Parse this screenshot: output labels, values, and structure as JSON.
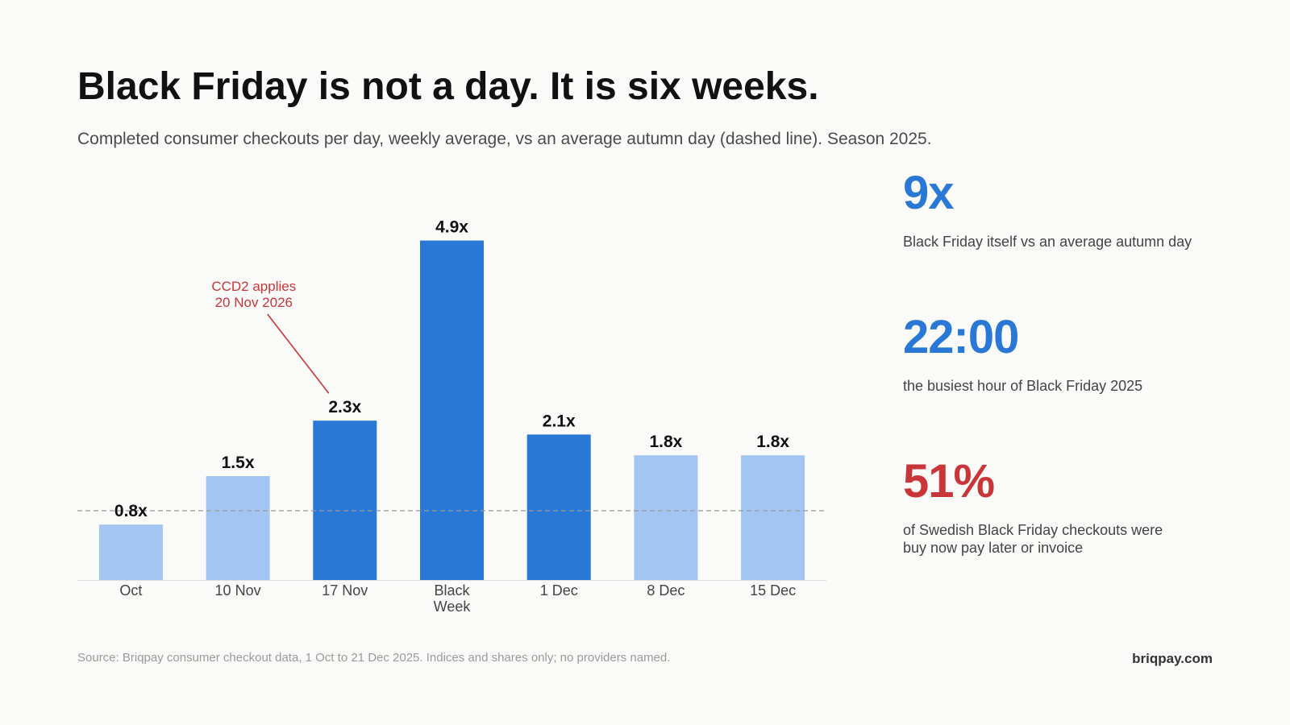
{
  "title": "Black Friday is not a day. It is six weeks.",
  "subtitle": "Completed consumer checkouts per day, weekly average, vs an average autumn day (dashed line). Season 2025.",
  "colors": {
    "light_bar": "#a2c5f2",
    "dark_bar": "#2a78d6",
    "accent_blue": "#2a78d6",
    "accent_red": "#c8363a",
    "annotation": "#c8363a",
    "baseline": "#999999"
  },
  "chart_data": {
    "type": "bar",
    "categories": [
      "Oct",
      "10 Nov",
      "17 Nov",
      "Black Week",
      "1 Dec",
      "8 Dec",
      "15 Dec"
    ],
    "values": [
      0.8,
      1.5,
      2.3,
      4.9,
      2.1,
      1.8,
      1.8
    ],
    "value_labels": [
      "0.8x",
      "1.5x",
      "2.3x",
      "4.9x",
      "2.1x",
      "1.8x",
      "1.8x"
    ],
    "highlighted": [
      false,
      false,
      true,
      true,
      true,
      false,
      false
    ],
    "reference_line": 1.0,
    "ylim": [
      0,
      5.0
    ],
    "grid": false,
    "annotation": {
      "category": "17 Nov",
      "lines": [
        "CCD2 applies",
        "20 Nov 2026"
      ]
    }
  },
  "stats": [
    {
      "value": "9x",
      "desc_lines": [
        "Black Friday itself vs an average autumn day"
      ],
      "color": "#2a78d6"
    },
    {
      "value": "22:00",
      "desc_lines": [
        "the busiest hour of Black Friday 2025"
      ],
      "color": "#2a78d6"
    },
    {
      "value": "51%",
      "desc_lines": [
        "of Swedish Black Friday checkouts were",
        "buy now pay later or invoice"
      ],
      "color": "#c8363a"
    }
  ],
  "footer": {
    "source": "Source: Briqpay consumer checkout data, 1 Oct to 21 Dec 2025. Indices and shares only; no providers named.",
    "brand": "briqpay.com"
  }
}
